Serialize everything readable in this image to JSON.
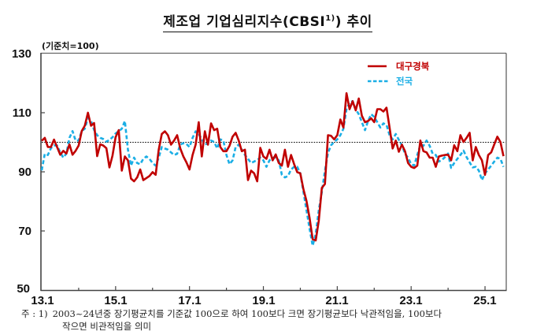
{
  "title": {
    "main": "제조업 기업심리지수(CBSI",
    "sup": "1)",
    "tail": ") 추이"
  },
  "unit_label": "(기준치=100)",
  "legend": {
    "items": [
      {
        "label": "대구경북",
        "color": "#c00000",
        "style": "solid"
      },
      {
        "label": "전국",
        "color": "#1aaee5",
        "style": "dashed"
      }
    ]
  },
  "footnote": {
    "prefix": "주 : 1)",
    "line1": "2003~24년중 장기평균치를 기준값 100으로 하여 100보다 크면 장기평균보다 낙관적임을, 100보다",
    "line2": "작으면 비관적임을 의미"
  },
  "chart_data": {
    "type": "line",
    "title": "제조업 기업심리지수(CBSI1)) 추이",
    "unit_label": "(기준치=100)",
    "xlabel": "",
    "ylabel": "",
    "x_frequency": "monthly",
    "x_start": "13.1",
    "x_tick_labels": [
      {
        "label": "13.1",
        "index": 0
      },
      {
        "label": "15.1",
        "index": 24
      },
      {
        "label": "17.1",
        "index": 48
      },
      {
        "label": "19.1",
        "index": 72
      },
      {
        "label": "21.1",
        "index": 96
      },
      {
        "label": "23.1",
        "index": 120
      },
      {
        "label": "25.1",
        "index": 144
      }
    ],
    "x_minor_tick_indices": [
      12,
      36,
      60,
      84,
      108,
      132
    ],
    "ylim": [
      50,
      130
    ],
    "y_ticks": [
      "130",
      "110",
      "90",
      "70",
      "50"
    ],
    "reference_line": {
      "value": 100,
      "style": "dotted",
      "color": "#000000"
    },
    "grid": false,
    "legend_position": "upper right",
    "series": [
      {
        "name": "대구경북",
        "color": "#c00000",
        "style": "solid",
        "values": [
          100.5,
          101.5,
          98.4,
          98.4,
          100.9,
          98.4,
          95.8,
          97.1,
          96.2,
          99.3,
          95.8,
          97.1,
          98.9,
          103.8,
          105.6,
          110,
          105.6,
          106.5,
          95.3,
          99.3,
          98.9,
          98,
          91.5,
          95.5,
          101.7,
          104.1,
          90.4,
          95.2,
          93.9,
          87.7,
          86.8,
          88.1,
          90.8,
          87.2,
          87.9,
          88.6,
          89.9,
          89,
          97.5,
          102.8,
          103.7,
          102.4,
          99.2,
          100.6,
          102.4,
          97.9,
          95.2,
          93.2,
          90.8,
          95.7,
          99.2,
          106.8,
          95.2,
          103.7,
          99.2,
          106.4,
          104.1,
          104.6,
          98.4,
          97,
          97,
          98.8,
          101.9,
          103.2,
          100.6,
          97,
          97.5,
          87.2,
          90.4,
          89.5,
          86.8,
          98.1,
          95.2,
          94.4,
          97.5,
          93.9,
          95.9,
          93,
          92.1,
          97.5,
          91.7,
          95.7,
          92.6,
          89.9,
          89.5,
          84.1,
          80.1,
          74.4,
          67.2,
          66.8,
          73.5,
          84.6,
          85.9,
          102.4,
          102.2,
          101,
          102.4,
          107.7,
          105,
          116.6,
          111.2,
          113.9,
          110.8,
          114.8,
          109,
          106.8,
          107.2,
          108.1,
          106.8,
          111.2,
          111.2,
          110.4,
          111.7,
          105,
          97.9,
          100.6,
          96.8,
          99.2,
          97,
          93,
          91.7,
          91.3,
          92.1,
          100.6,
          97,
          96.6,
          94.8,
          94.8,
          91.7,
          95.2,
          95.5,
          95.7,
          95.8,
          93.9,
          99,
          97,
          102.4,
          100.1,
          101.5,
          103.2,
          93.9,
          98.4,
          95.7,
          93.9,
          89,
          95.7,
          96.6,
          99.3,
          101.9,
          100.1,
          95.3
        ]
      },
      {
        "name": "전국",
        "color": "#1aaee5",
        "style": "dashed",
        "values": [
          90.5,
          96.1,
          95.7,
          98,
          98.9,
          98.9,
          96.6,
          94.8,
          96.2,
          101.5,
          103.8,
          100.6,
          100.6,
          103.8,
          104.6,
          108.2,
          107.3,
          104.2,
          102.4,
          101.5,
          101.1,
          100.2,
          100.8,
          101.7,
          103,
          103.7,
          104.6,
          107.2,
          97.5,
          92.1,
          94.8,
          93,
          92.6,
          94.4,
          95.2,
          94.4,
          93,
          92.1,
          94.8,
          98.4,
          97.9,
          97.5,
          96.6,
          95.7,
          96.1,
          99.2,
          99.7,
          99.4,
          98.4,
          101.5,
          103.7,
          102.8,
          101,
          99.2,
          99.7,
          100.6,
          100.1,
          97.9,
          101,
          100.6,
          95.7,
          92.6,
          93.9,
          98.4,
          99.2,
          97.5,
          95.7,
          94.4,
          93,
          93.5,
          94,
          94.8,
          93.9,
          91.7,
          93.9,
          94.8,
          94.8,
          93.9,
          89,
          88.1,
          88.6,
          90.8,
          91.7,
          91.7,
          89.5,
          83.2,
          77,
          70.8,
          65,
          69,
          77,
          83.2,
          90.4,
          96.4,
          99,
          100.1,
          101,
          102.4,
          104.6,
          111.2,
          113.5,
          113.9,
          111.2,
          109.5,
          106.8,
          104.1,
          107.2,
          109.5,
          108.6,
          106.8,
          105,
          106.4,
          105.9,
          102.4,
          101,
          102.8,
          100.8,
          99,
          96.1,
          94.8,
          92.6,
          92.1,
          95.7,
          99.2,
          98.8,
          100.6,
          98.8,
          96.1,
          95.7,
          93.5,
          94,
          95,
          96.2,
          91.3,
          93,
          94.4,
          95.7,
          97.2,
          95,
          93.2,
          91.5,
          91.7,
          90.4,
          87.2,
          89.5,
          90.8,
          92.1,
          93.5,
          94.8,
          94.4,
          91.7
        ]
      }
    ]
  }
}
